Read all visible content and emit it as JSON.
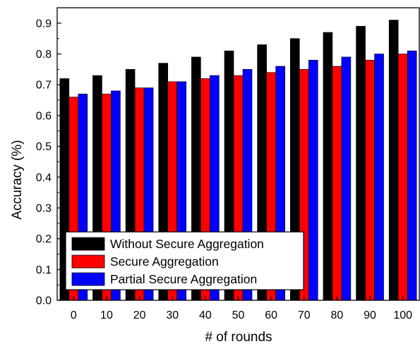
{
  "chart_data": {
    "type": "bar",
    "xlabel": "# of rounds",
    "ylabel": "Accuracy (%)",
    "categories": [
      "0",
      "10",
      "20",
      "30",
      "40",
      "50",
      "60",
      "70",
      "80",
      "90",
      "100"
    ],
    "y_ticks": [
      "0.0",
      "0.1",
      "0.2",
      "0.3",
      "0.4",
      "0.5",
      "0.6",
      "0.7",
      "0.8",
      "0.9"
    ],
    "ylim": [
      0,
      0.95
    ],
    "grid": false,
    "legend_position": "bottom-left",
    "series": [
      {
        "name": "Without Secure Aggregation",
        "color": "#000000",
        "values": [
          0.72,
          0.73,
          0.75,
          0.77,
          0.79,
          0.81,
          0.83,
          0.85,
          0.87,
          0.89,
          0.91
        ]
      },
      {
        "name": "Secure Aggregation",
        "color": "#ff0000",
        "values": [
          0.66,
          0.67,
          0.69,
          0.71,
          0.72,
          0.73,
          0.74,
          0.75,
          0.76,
          0.78,
          0.8
        ]
      },
      {
        "name": "Partial Secure Aggregation",
        "color": "#0000ff",
        "values": [
          0.67,
          0.68,
          0.69,
          0.71,
          0.73,
          0.75,
          0.76,
          0.78,
          0.79,
          0.8,
          0.81
        ]
      }
    ]
  }
}
